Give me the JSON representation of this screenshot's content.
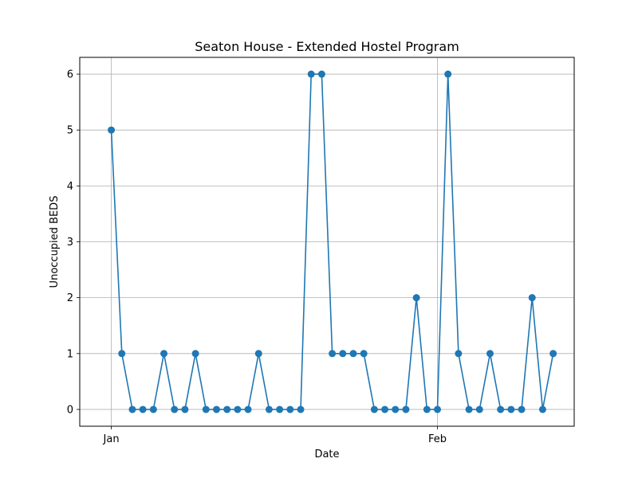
{
  "chart_data": {
    "type": "line",
    "title": "Seaton House - Extended Hostel Program",
    "xlabel": "Date",
    "ylabel": "Unoccupied BEDS",
    "x_start": "2024-01-01",
    "x_tick_labels": [
      {
        "label": "Jan",
        "date": "2024-01-01"
      },
      {
        "label": "Feb",
        "date": "2024-02-01"
      }
    ],
    "y_ticks": [
      0,
      1,
      2,
      3,
      4,
      5,
      6
    ],
    "ylim": [
      -0.3,
      6.3
    ],
    "xlim": [
      "2023-12-29",
      "2024-02-14"
    ],
    "grid": true,
    "color": "#1f77b4",
    "series": [
      {
        "x": [
          "2024-01-01",
          "2024-01-02",
          "2024-01-03",
          "2024-01-04",
          "2024-01-05",
          "2024-01-06",
          "2024-01-07",
          "2024-01-08",
          "2024-01-09",
          "2024-01-10",
          "2024-01-11",
          "2024-01-12",
          "2024-01-13",
          "2024-01-14",
          "2024-01-15",
          "2024-01-16",
          "2024-01-17",
          "2024-01-18",
          "2024-01-19",
          "2024-01-20",
          "2024-01-21",
          "2024-01-22",
          "2024-01-23",
          "2024-01-24",
          "2024-01-25",
          "2024-01-26",
          "2024-01-27",
          "2024-01-28",
          "2024-01-29",
          "2024-01-30",
          "2024-01-31",
          "2024-02-01",
          "2024-02-02",
          "2024-02-03",
          "2024-02-04",
          "2024-02-05",
          "2024-02-06",
          "2024-02-07",
          "2024-02-08",
          "2024-02-09",
          "2024-02-10",
          "2024-02-11",
          "2024-02-12"
        ],
        "values": [
          5,
          1,
          0,
          0,
          0,
          1,
          0,
          0,
          1,
          0,
          0,
          0,
          0,
          0,
          1,
          0,
          0,
          0,
          0,
          6,
          6,
          1,
          1,
          1,
          1,
          0,
          0,
          0,
          0,
          2,
          0,
          0,
          6,
          1,
          0,
          0,
          1,
          0,
          0,
          0,
          2,
          0,
          1
        ]
      }
    ]
  }
}
